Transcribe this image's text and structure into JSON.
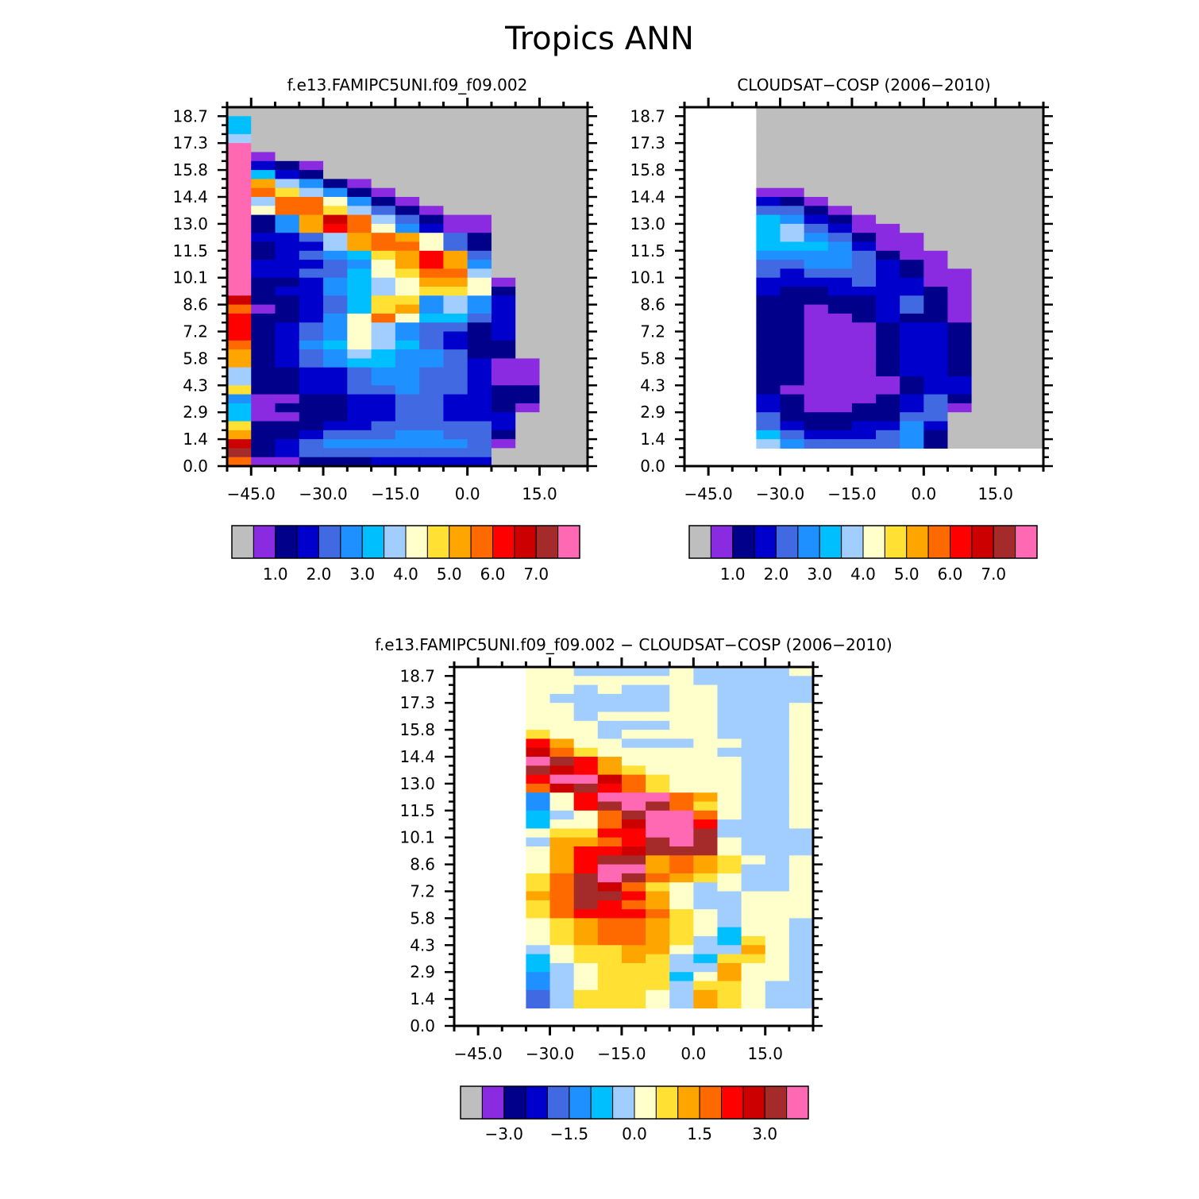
{
  "title": "Tropics ANN",
  "palette": [
    "#BEBEBE",
    "#8A2BE2",
    "#00008B",
    "#0000CD",
    "#4169E1",
    "#1E90FF",
    "#00BFFF",
    "#A2CDFF",
    "#FFFFCC",
    "#FFE033",
    "#FFA500",
    "#FF6A00",
    "#FF0000",
    "#CD0000",
    "#A52A2A",
    "#FF69B4"
  ],
  "missing_color": "#FFFFFF",
  "chart_data": [
    {
      "type": "heatmap",
      "title": "f.e13.FAMIPC5UNI.f09_f09.002",
      "x_bin_edges_range": [
        -50,
        25
      ],
      "x_bins": 15,
      "y_bin_edges_range": [
        0,
        19.2
      ],
      "y_bins": 40,
      "xticks": [
        "−45.0",
        "−30.0",
        "−15.0",
        "0.0",
        "15.0"
      ],
      "xtick_values": [
        -45,
        -30,
        -15,
        0,
        15
      ],
      "yticks": [
        "0.0",
        "1.4",
        "2.9",
        "4.3",
        "5.8",
        "7.2",
        "8.6",
        "10.1",
        "11.5",
        "13.0",
        "14.4",
        "15.8",
        "17.3",
        "18.7"
      ],
      "ytick_values": [
        0,
        1.44,
        2.88,
        4.32,
        5.76,
        7.2,
        8.64,
        10.08,
        11.52,
        12.96,
        14.4,
        15.84,
        17.28,
        18.72
      ],
      "levels": [
        0.5,
        1.0,
        1.5,
        2.0,
        2.5,
        3.0,
        3.5,
        4.0,
        4.5,
        5.0,
        5.5,
        6.0,
        6.5,
        7.0,
        7.5
      ],
      "colorbar_labels": [
        "1.0",
        "2.0",
        "3.0",
        "4.0",
        "5.0",
        "6.0",
        "7.0"
      ],
      "colorbar_label_levels": [
        1.0,
        2.0,
        3.0,
        4.0,
        5.0,
        6.0,
        7.0
      ],
      "grid_note_levels": "each char = palette index (hex), '.' = missing; rows top (19.2) to bottom (0)",
      "grid": [
        "000000000000000",
        "600000000000000",
        "600000000000000",
        "700000000000000",
        "f00000000000000",
        "f10000000000000",
        "f32100000000000",
        "f63200000000000",
        "fa7521000000000",
        "fb9752100000000",
        "f7bb85210000000",
        "f8bb97421000000",
        "f25adb742110000",
        "f25acb853110000",
        "f3347aba8420000",
        "f2337abb8420000",
        "f234569aca40000",
        "f333458aca50000",
        "f3344689bb70000",
        "f2235678aa81000",
        "f23356789982000",
        "d22346995753000",
        "b123469a5753000",
        "c22358b86643000",
        "c23458754423000",
        "c23458754323000",
        "b23568764322000",
        "a23457655422000",
        "a23456655431100",
        "722334554431100",
        "722334554431100",
        "922334454432200",
        "511223344332200",
        "612223344332100",
        "611223344333000",
        "922233444443000",
        "a22344455442000",
        "d23455555541000",
        "e23444444440000",
        "b11222333330000"
      ]
    },
    {
      "type": "heatmap",
      "title": "CLOUDSAT−COSP (2006−2010)",
      "x_bin_edges_range": [
        -50,
        25
      ],
      "x_bins": 15,
      "y_bin_edges_range": [
        0,
        19.2
      ],
      "y_bins": 40,
      "xticks": [
        "−45.0",
        "−30.0",
        "−15.0",
        "0.0",
        "15.0"
      ],
      "xtick_values": [
        -45,
        -30,
        -15,
        0,
        15
      ],
      "yticks": [
        "0.0",
        "1.4",
        "2.9",
        "4.3",
        "5.8",
        "7.2",
        "8.6",
        "10.1",
        "11.5",
        "13.0",
        "14.4",
        "15.8",
        "17.3",
        "18.7"
      ],
      "ytick_values": [
        0,
        1.44,
        2.88,
        4.32,
        5.76,
        7.2,
        8.64,
        10.08,
        11.52,
        12.96,
        14.4,
        15.84,
        17.28,
        18.72
      ],
      "levels": [
        0.5,
        1.0,
        1.5,
        2.0,
        2.5,
        3.0,
        3.5,
        4.0,
        4.5,
        5.0,
        5.5,
        6.0,
        6.5,
        7.0,
        7.5
      ],
      "colorbar_labels": [
        "1.0",
        "2.0",
        "3.0",
        "4.0",
        "5.0",
        "6.0",
        "7.0"
      ],
      "colorbar_label_levels": [
        1.0,
        2.0,
        3.0,
        4.0,
        5.0,
        6.0,
        7.0
      ],
      "grid": [
        "...000000000000",
        "...000000000000",
        "...000000000000",
        "...000000000000",
        "...000000000000",
        "...000000000000",
        "...000000000000",
        "...000000000000",
        "...000000000000",
        "...110000000000",
        "...321000000000",
        "...442100000000",
        "...653210000000",
        "...674311000000",
        "...675421100000",
        "...666531100000",
        "...555542110000",
        "...445543210000",
        "...434443211000",
        "...333343311000",
        "...322333321000",
        "...222223421000",
        "...221223421000",
        "...221123221000",
        "...221112332000",
        "...221112332000",
        "...221112332000",
        "...221112332000",
        "...221112332000",
        "...221112332000",
        "...221111233000",
        "...211111233000",
        "...321112342000",
        "...321122341000",
        "...422222440000",
        "...432233530000",
        "...643334520000",
        "...754444520000",
        "...............",
        "..............."
      ]
    },
    {
      "type": "heatmap",
      "title": "f.e13.FAMIPC5UNI.f09_f09.002 − CLOUDSAT−COSP (2006−2010)",
      "x_bin_edges_range": [
        -50,
        25
      ],
      "x_bins": 15,
      "y_bin_edges_range": [
        0,
        19.2
      ],
      "y_bins": 40,
      "xticks": [
        "−45.0",
        "−30.0",
        "−15.0",
        "0.0",
        "15.0"
      ],
      "xtick_values": [
        -45,
        -30,
        -15,
        0,
        15
      ],
      "yticks": [
        "0.0",
        "1.4",
        "2.9",
        "4.3",
        "5.8",
        "7.2",
        "8.6",
        "10.1",
        "11.5",
        "13.0",
        "14.4",
        "15.8",
        "17.3",
        "18.7"
      ],
      "ytick_values": [
        0,
        1.44,
        2.88,
        4.32,
        5.76,
        7.2,
        8.64,
        10.08,
        11.52,
        12.96,
        14.4,
        15.84,
        17.28,
        18.72
      ],
      "levels": [
        -3.5,
        -3.0,
        -2.5,
        -2.0,
        -1.5,
        -1.0,
        -0.5,
        0.0,
        0.5,
        1.0,
        1.5,
        2.0,
        2.5,
        3.0,
        3.5
      ],
      "colorbar_labels": [
        "−3.0",
        "−1.5",
        "0.0",
        "1.5",
        "3.0"
      ],
      "colorbar_label_levels": [
        -3.0,
        -1.5,
        0.0,
        1.5,
        3.0
      ],
      "grid": [
        "...887777877778",
        "...888888877777",
        "...887877887777",
        "...877777887777",
        "...887777887778",
        "...887888887778",
        "...888777887778",
        "...988788887778",
        "...ca8877788778",
        "...db9888887778",
        "...feca88888778",
        "...edca98888778",
        "...cffdb9888778",
        "...bdecb9888778",
        "...58cfffba8778",
        "...58cefeb98778",
        "...678beffb8778",
        "...688bdffc7778",
        "...899ccffe7777",
        "...7aabcefe8777",
        "...8accdeee8777",
        "...8aceeaba9878",
        "...8acffaba9778",
        "...9befeba98778",
        "...9bedb9878778",
        "...abeeca877888",
        "...9becba877888",
        "...9bcccb987888",
        "...89abba987887",
        "...89abba986887",
        "...89abba976987",
        "...7899aa877a87",
        "...6899a9769987",
        "...67899977a887",
        "...57899968a887",
        "...578999799877",
        "...4799987a9877",
        "...4799987a9877",
        "...............",
        "..............."
      ]
    }
  ]
}
